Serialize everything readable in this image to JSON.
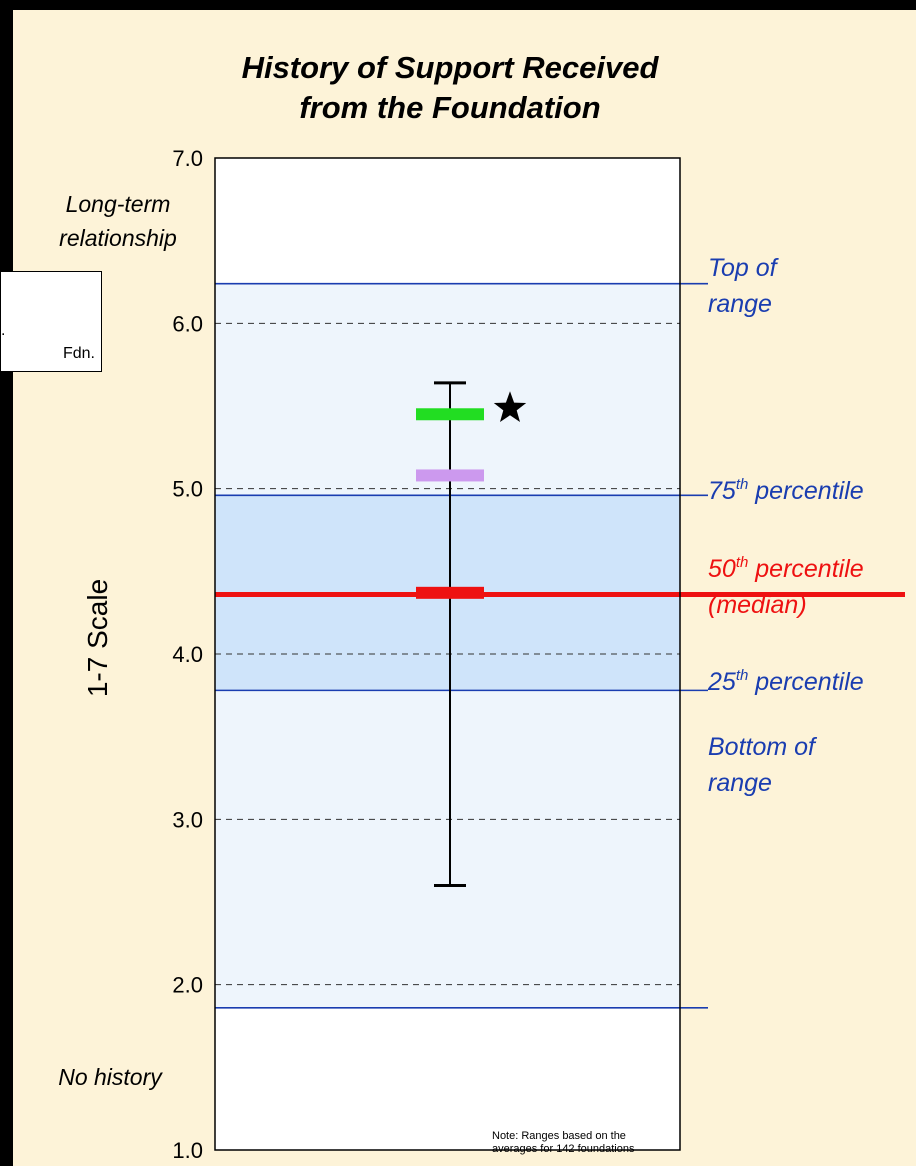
{
  "chart_data": {
    "type": "range",
    "title": [
      "History of Support Received",
      "from the Foundation"
    ],
    "ylabel": "1-7 Scale",
    "ylim": [
      1.0,
      7.0
    ],
    "yticks": [
      "1.0",
      "2.0",
      "3.0",
      "4.0",
      "5.0",
      "6.0",
      "7.0"
    ],
    "ytick_values": [
      1.0,
      2.0,
      3.0,
      4.0,
      5.0,
      6.0,
      7.0
    ],
    "anchor_labels": {
      "top": [
        "Long-term",
        "relationship"
      ],
      "bottom": "No history"
    },
    "range": {
      "top": 6.24,
      "p75": 4.96,
      "median": 4.36,
      "p25": 3.78,
      "bottom": 1.86
    },
    "range_labels": {
      "top": [
        "Top of",
        "range"
      ],
      "p75": {
        "num": "75",
        "sup": "th",
        "text": " percentile"
      },
      "median": {
        "num": "50",
        "sup": "th",
        "text": " percentile",
        "line2": "(median)"
      },
      "p25": {
        "num": "25",
        "sup": "th",
        "text": " percentile"
      },
      "bottom": [
        "Bottom of",
        "range"
      ]
    },
    "error_bar": {
      "low": 2.6,
      "high": 5.64
    },
    "markers": [
      {
        "value": 5.45,
        "color": "#22dd22",
        "star": true
      },
      {
        "value": 5.08,
        "color": "#cc99ee",
        "star": false
      },
      {
        "value": 4.37,
        "color": "#ee1111",
        "star": false
      }
    ],
    "note": [
      "Note: Ranges based on the",
      "averages for 142 foundations"
    ],
    "grid": "dashed"
  },
  "legend": {
    "partial_text": "Fdn.",
    "partial_dot": "."
  },
  "colors": {
    "background": "#fdf3d8",
    "range_outer": "#eef5fc",
    "range_inner": "#cfe4fa",
    "range_line": "#1a3db0",
    "median": "#ee1111",
    "label_blue": "#1a3db0"
  }
}
